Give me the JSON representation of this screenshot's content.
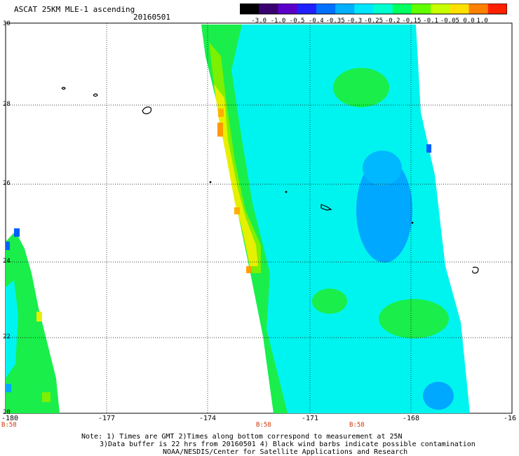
{
  "header": {
    "title": "ASCAT 25KM MLE-1 ascending",
    "date": "20160501"
  },
  "colorbar": {
    "labels": [
      "-3.0",
      "-1.0",
      "-0.5",
      "-0.4",
      "-0.35",
      "-0.3",
      "-0.25",
      "-0.2",
      "-0.15",
      "-0.1",
      "-0.05",
      "0.0",
      "1.0"
    ],
    "colors": [
      "#000000",
      "#3a0070",
      "#5a00c8",
      "#2020ff",
      "#0070ff",
      "#00b0ff",
      "#00e6ff",
      "#00ffd0",
      "#00ff60",
      "#60ff00",
      "#c8ff00",
      "#ffe000",
      "#ff8000",
      "#ff2000"
    ]
  },
  "map": {
    "lon_labels": [
      "-180",
      "-177",
      "-174",
      "-171",
      "-168",
      "-16"
    ],
    "lat_labels": [
      "30",
      "28",
      "26",
      "24",
      "22",
      "20"
    ],
    "time_labels": [
      "B:58",
      "B:58",
      "B:58"
    ],
    "left_time_label": "B:58",
    "swath_colors": {
      "base": "#00f4ef",
      "green": "#1aee4a",
      "lime": "#7cf000",
      "yellow": "#e6f000",
      "orange": "#ffa000",
      "blue": "#00a8ff",
      "deepblue": "#0060ff"
    }
  },
  "notes": {
    "line1": "Note: 1) Times are GMT 2)Times along bottom correspond to measurement at 25N",
    "line2": "3)Data buffer is 22 hrs from 20160501 4) Black wind barbs indicate possible contamination",
    "line3": "NOAA/NESDIS/Center for Satellite Applications and Research"
  }
}
